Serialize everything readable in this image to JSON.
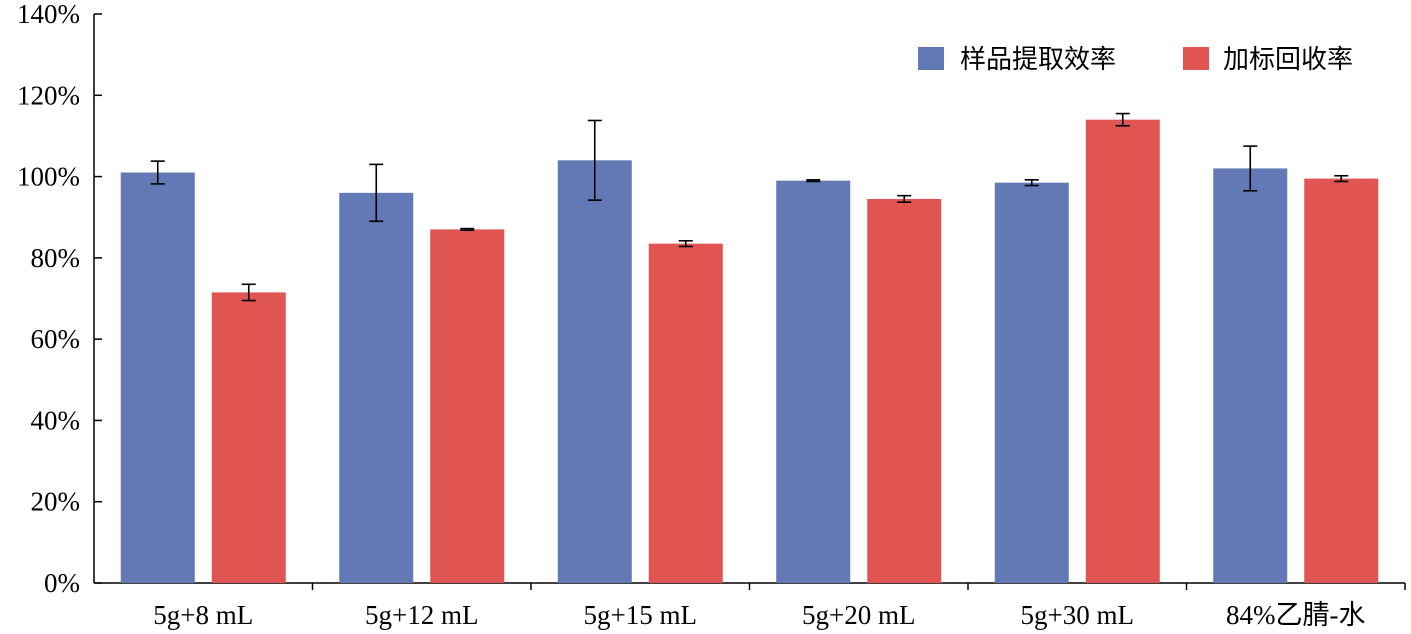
{
  "chart_data": {
    "type": "bar",
    "categories": [
      "5g+8 mL",
      "5g+12 mL",
      "5g+15 mL",
      "5g+20 mL",
      "5g+30 mL",
      "84%乙腈-水"
    ],
    "series": [
      {
        "name": "样品提取效率",
        "color": "#6379b5",
        "values": [
          101,
          96,
          104,
          99,
          98.5,
          102
        ],
        "errors": [
          2.8,
          7.0,
          9.8,
          0.2,
          0.7,
          5.5
        ]
      },
      {
        "name": "加标回收率",
        "color": "#e05552",
        "values": [
          71.5,
          87,
          83.5,
          94.5,
          114,
          99.5
        ],
        "errors": [
          2.0,
          0.2,
          0.7,
          0.8,
          1.5,
          0.7
        ]
      }
    ],
    "ylim": [
      0,
      140
    ],
    "yticks": [
      "0%",
      "20%",
      "40%",
      "60%",
      "80%",
      "100%",
      "120%",
      "140%"
    ],
    "ytick_values": [
      0,
      20,
      40,
      60,
      80,
      100,
      120,
      140
    ],
    "grid": false,
    "legend_position": "top-right",
    "title": "",
    "xlabel": "",
    "ylabel": ""
  }
}
